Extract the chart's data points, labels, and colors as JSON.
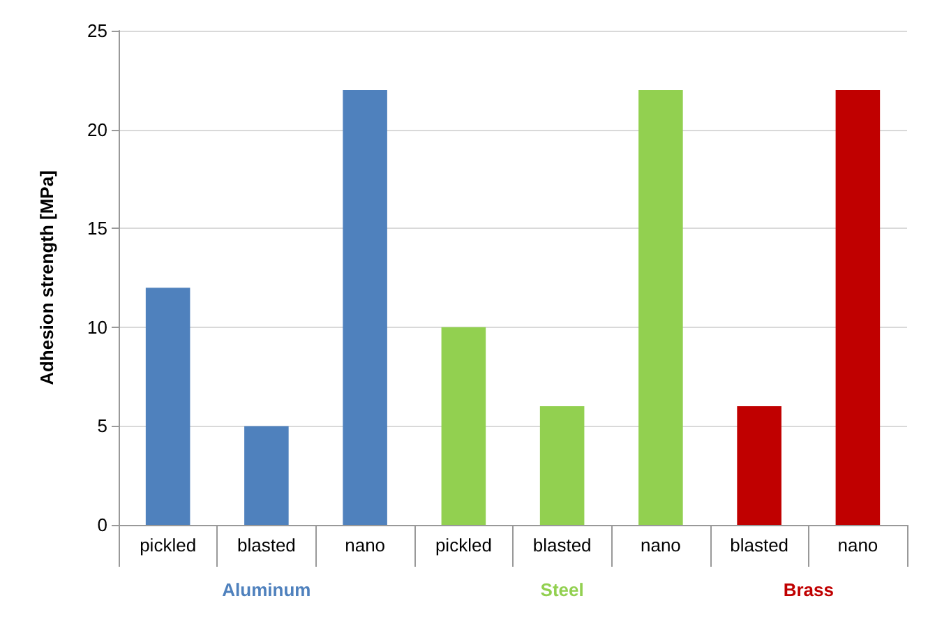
{
  "chart_data": {
    "type": "bar",
    "ylabel": "Adhesion strength [MPa]",
    "categories": [
      "pickled",
      "blasted",
      "nano",
      "pickled",
      "blasted",
      "nano",
      "blasted",
      "nano"
    ],
    "series": [
      {
        "name": "Aluminum",
        "color": "#4f81bd",
        "values": [
          12,
          5,
          22,
          null,
          null,
          null,
          null,
          null
        ]
      },
      {
        "name": "Steel",
        "color": "#92d050",
        "values": [
          null,
          null,
          null,
          10,
          6,
          22,
          null,
          null
        ]
      },
      {
        "name": "Brass",
        "color": "#c00000",
        "values": [
          null,
          null,
          null,
          null,
          null,
          null,
          6,
          22
        ]
      }
    ],
    "ylim": [
      0,
      25
    ],
    "yticks": [
      0,
      5,
      10,
      15,
      20,
      25
    ],
    "grid": "y",
    "legend": false
  }
}
